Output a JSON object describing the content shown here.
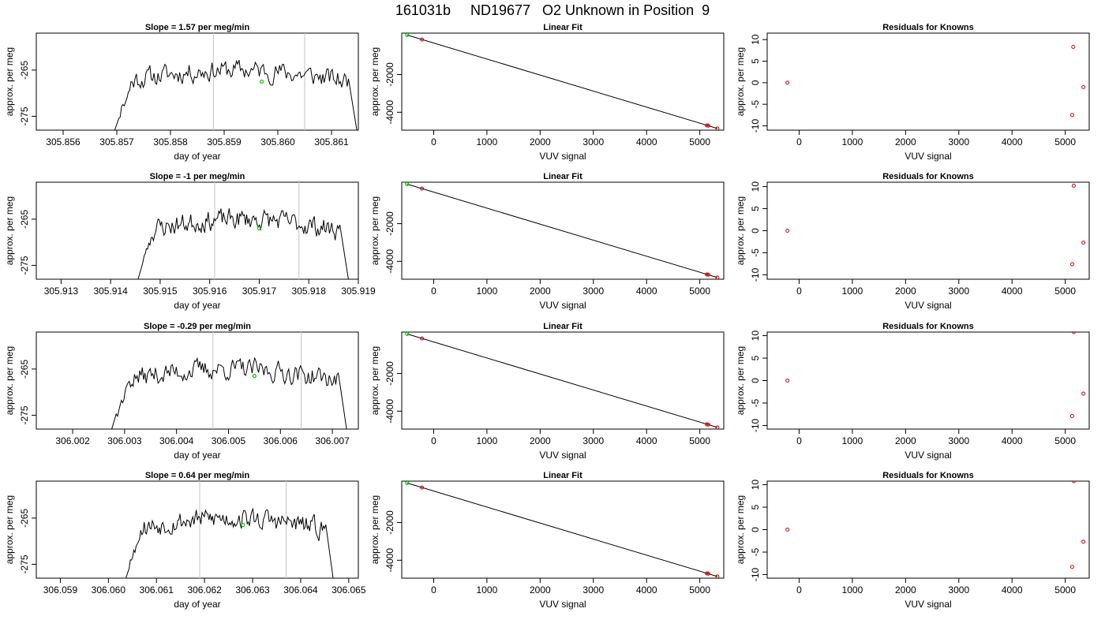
{
  "title": "161031b     ND19677   O2 Unknown in Position  9",
  "colors": {
    "trace": "#000000",
    "marker_green": "#00cc00",
    "marker_red": "#cc0000",
    "vline": "#cccccc",
    "frame": "#000000"
  },
  "chart_data": [
    {
      "type": "line",
      "title": "Slope =  1.57  per meg/min",
      "xlabel": "day of year",
      "ylabel": "approx. per meg",
      "xlim": [
        305.8555,
        305.8615
      ],
      "ylim": [
        -278,
        -257
      ],
      "xticks": [
        "305.856",
        "305.857",
        "305.858",
        "305.859",
        "305.860",
        "305.861"
      ],
      "xtick_values": [
        305.856,
        305.857,
        305.858,
        305.859,
        305.86,
        305.861
      ],
      "yticks": [
        "-265",
        "-275"
      ],
      "ytick_values": [
        -265,
        -275
      ],
      "trace_xrange": [
        305.8569,
        305.8615
      ],
      "trace_start": -280,
      "trace_end": -280,
      "vlines": [
        305.8588,
        305.8605
      ],
      "green_point": {
        "x": 305.8597,
        "y": -267.5
      },
      "seed": 11
    },
    {
      "type": "scatter",
      "title": "Linear Fit",
      "xlabel": "VUV signal",
      "ylabel": "approx. per meg",
      "xlim": [
        -600,
        5450
      ],
      "ylim": [
        -4950,
        200
      ],
      "xticks": [
        "0",
        "1000",
        "2000",
        "3000",
        "4000",
        "5000"
      ],
      "xtick_values": [
        0,
        1000,
        2000,
        3000,
        4000,
        5000
      ],
      "yticks": [
        "-2000",
        "-4000"
      ],
      "ytick_values": [
        -2000,
        -4000
      ],
      "fit_line": [
        {
          "x": -500,
          "y": 100
        },
        {
          "x": 5330,
          "y": -4860
        }
      ],
      "points_red": [
        {
          "x": -220,
          "y": -140
        },
        {
          "x": 5130,
          "y": -4700
        },
        {
          "x": 5160,
          "y": -4710
        },
        {
          "x": 5330,
          "y": -4860
        }
      ],
      "points_green": [
        {
          "x": -500,
          "y": 100
        }
      ]
    },
    {
      "type": "scatter",
      "title": "Residuals for Knowns",
      "xlabel": "VUV signal",
      "ylabel": "approx. per meg",
      "xlim": [
        -600,
        5450
      ],
      "ylim": [
        -11,
        11.5
      ],
      "xticks": [
        "0",
        "1000",
        "2000",
        "3000",
        "4000",
        "5000"
      ],
      "xtick_values": [
        0,
        1000,
        2000,
        3000,
        4000,
        5000
      ],
      "yticks": [
        "-10",
        "-5",
        "0",
        "5",
        "10"
      ],
      "ytick_values": [
        -10,
        -5,
        0,
        5,
        10
      ],
      "points_red": [
        {
          "x": -220,
          "y": 0
        },
        {
          "x": 5150,
          "y": 8.3
        },
        {
          "x": 5340,
          "y": -1
        },
        {
          "x": 5130,
          "y": -7.5
        }
      ]
    },
    {
      "type": "line",
      "title": "Slope =  -1  per meg/min",
      "xlabel": "day of year",
      "ylabel": "approx. per meg",
      "xlim": [
        305.9125,
        305.919
      ],
      "ylim": [
        -278,
        -257
      ],
      "xticks": [
        "305.913",
        "305.914",
        "305.915",
        "305.916",
        "305.917",
        "305.918",
        "305.919"
      ],
      "xtick_values": [
        305.913,
        305.914,
        305.915,
        305.916,
        305.917,
        305.918,
        305.919
      ],
      "yticks": [
        "-265",
        "-275"
      ],
      "ytick_values": [
        -265,
        -275
      ],
      "trace_xrange": [
        305.9145,
        305.9188
      ],
      "trace_start": -280,
      "trace_end": -278,
      "vlines": [
        305.9161,
        305.9178
      ],
      "green_point": {
        "x": 305.917,
        "y": -267
      },
      "seed": 23
    },
    {
      "type": "scatter",
      "title": "Linear Fit",
      "xlabel": "VUV signal",
      "ylabel": "approx. per meg",
      "xlim": [
        -600,
        5450
      ],
      "ylim": [
        -4950,
        200
      ],
      "xticks": [
        "0",
        "1000",
        "2000",
        "3000",
        "4000",
        "5000"
      ],
      "xtick_values": [
        0,
        1000,
        2000,
        3000,
        4000,
        5000
      ],
      "yticks": [
        "-2000",
        "-4000"
      ],
      "ytick_values": [
        -2000,
        -4000
      ],
      "fit_line": [
        {
          "x": -500,
          "y": 100
        },
        {
          "x": 5330,
          "y": -4860
        }
      ],
      "points_red": [
        {
          "x": -220,
          "y": -140
        },
        {
          "x": 5130,
          "y": -4700
        },
        {
          "x": 5160,
          "y": -4710
        },
        {
          "x": 5330,
          "y": -4860
        }
      ],
      "points_green": [
        {
          "x": -500,
          "y": 100
        }
      ]
    },
    {
      "type": "scatter",
      "title": "Residuals for Knowns",
      "xlabel": "VUV signal",
      "ylabel": "approx. per meg",
      "xlim": [
        -600,
        5450
      ],
      "ylim": [
        -11,
        11
      ],
      "xticks": [
        "0",
        "1000",
        "2000",
        "3000",
        "4000",
        "5000"
      ],
      "xtick_values": [
        0,
        1000,
        2000,
        3000,
        4000,
        5000
      ],
      "yticks": [
        "-10",
        "-5",
        "0",
        "5",
        "10"
      ],
      "ytick_values": [
        -10,
        -5,
        0,
        5,
        10
      ],
      "points_red": [
        {
          "x": -220,
          "y": 0
        },
        {
          "x": 5160,
          "y": 10.2
        },
        {
          "x": 5340,
          "y": -2.7
        },
        {
          "x": 5130,
          "y": -7.6
        }
      ]
    },
    {
      "type": "line",
      "title": "Slope =  -0.29  per meg/min",
      "xlabel": "day of year",
      "ylabel": "approx. per meg",
      "xlim": [
        306.0013,
        306.0075
      ],
      "ylim": [
        -278,
        -257
      ],
      "xticks": [
        "306.002",
        "306.003",
        "306.004",
        "306.005",
        "306.006",
        "306.007"
      ],
      "xtick_values": [
        306.002,
        306.003,
        306.004,
        306.005,
        306.006,
        306.007
      ],
      "yticks": [
        "-265",
        "-275"
      ],
      "ytick_values": [
        -265,
        -275
      ],
      "trace_xrange": [
        306.0027,
        306.0073
      ],
      "trace_start": -280,
      "trace_end": -280,
      "vlines": [
        306.0047,
        306.0064
      ],
      "green_point": {
        "x": 306.0055,
        "y": -266.5
      },
      "seed": 37
    },
    {
      "type": "scatter",
      "title": "Linear Fit",
      "xlabel": "VUV signal",
      "ylabel": "approx. per meg",
      "xlim": [
        -600,
        5450
      ],
      "ylim": [
        -4950,
        200
      ],
      "xticks": [
        "0",
        "1000",
        "2000",
        "3000",
        "4000",
        "5000"
      ],
      "xtick_values": [
        0,
        1000,
        2000,
        3000,
        4000,
        5000
      ],
      "yticks": [
        "-2000",
        "-4000"
      ],
      "ytick_values": [
        -2000,
        -4000
      ],
      "fit_line": [
        {
          "x": -500,
          "y": 100
        },
        {
          "x": 5330,
          "y": -4860
        }
      ],
      "points_red": [
        {
          "x": -220,
          "y": -140
        },
        {
          "x": 5130,
          "y": -4700
        },
        {
          "x": 5160,
          "y": -4710
        },
        {
          "x": 5330,
          "y": -4860
        }
      ],
      "points_green": [
        {
          "x": -500,
          "y": 100
        }
      ]
    },
    {
      "type": "scatter",
      "title": "Residuals for Knowns",
      "xlabel": "VUV signal",
      "ylabel": "approx. per meg",
      "xlim": [
        -600,
        5450
      ],
      "ylim": [
        -10.8,
        10.8
      ],
      "xticks": [
        "0",
        "1000",
        "2000",
        "3000",
        "4000",
        "5000"
      ],
      "xtick_values": [
        0,
        1000,
        2000,
        3000,
        4000,
        5000
      ],
      "yticks": [
        "-10",
        "-5",
        "0",
        "5",
        "10"
      ],
      "ytick_values": [
        -10,
        -5,
        0,
        5,
        10
      ],
      "points_red": [
        {
          "x": -220,
          "y": 0
        },
        {
          "x": 5160,
          "y": 10.8
        },
        {
          "x": 5340,
          "y": -2.9
        },
        {
          "x": 5130,
          "y": -7.9
        }
      ]
    },
    {
      "type": "line",
      "title": "Slope =  0.64  per meg/min",
      "xlabel": "day of year",
      "ylabel": "approx. per meg",
      "xlim": [
        306.0585,
        306.0652
      ],
      "ylim": [
        -278,
        -257
      ],
      "xticks": [
        "306.059",
        "306.060",
        "306.061",
        "306.062",
        "306.063",
        "306.064",
        "306.065"
      ],
      "xtick_values": [
        306.059,
        306.06,
        306.061,
        306.062,
        306.063,
        306.064,
        306.065
      ],
      "yticks": [
        "-265",
        "-275"
      ],
      "ytick_values": [
        -265,
        -275
      ],
      "trace_xrange": [
        306.0603,
        306.0647
      ],
      "trace_start": -280,
      "trace_end": -280,
      "vlines": [
        306.0619,
        306.0637
      ],
      "green_point": {
        "x": 306.0628,
        "y": -266.5
      },
      "seed": 53
    },
    {
      "type": "scatter",
      "title": "Linear Fit",
      "xlabel": "VUV signal",
      "ylabel": "approx. per meg",
      "xlim": [
        -600,
        5450
      ],
      "ylim": [
        -4950,
        200
      ],
      "xticks": [
        "0",
        "1000",
        "2000",
        "3000",
        "4000",
        "5000"
      ],
      "xtick_values": [
        0,
        1000,
        2000,
        3000,
        4000,
        5000
      ],
      "yticks": [
        "-2000",
        "-4000"
      ],
      "ytick_values": [
        -2000,
        -4000
      ],
      "fit_line": [
        {
          "x": -500,
          "y": 100
        },
        {
          "x": 5330,
          "y": -4860
        }
      ],
      "points_red": [
        {
          "x": -220,
          "y": -140
        },
        {
          "x": 5130,
          "y": -4700
        },
        {
          "x": 5160,
          "y": -4710
        },
        {
          "x": 5330,
          "y": -4860
        }
      ],
      "points_green": [
        {
          "x": -500,
          "y": 100
        }
      ]
    },
    {
      "type": "scatter",
      "title": "Residuals for Knowns",
      "xlabel": "VUV signal",
      "ylabel": "approx. per meg",
      "xlim": [
        -600,
        5450
      ],
      "ylim": [
        -10.8,
        10.8
      ],
      "xticks": [
        "0",
        "1000",
        "2000",
        "3000",
        "4000",
        "5000"
      ],
      "xtick_values": [
        0,
        1000,
        2000,
        3000,
        4000,
        5000
      ],
      "yticks": [
        "-10",
        "-5",
        "0",
        "5",
        "10"
      ],
      "ytick_values": [
        -10,
        -5,
        0,
        5,
        10
      ],
      "points_red": [
        {
          "x": -220,
          "y": 0
        },
        {
          "x": 5160,
          "y": 10.8
        },
        {
          "x": 5340,
          "y": -2.7
        },
        {
          "x": 5130,
          "y": -8.3
        }
      ]
    }
  ]
}
